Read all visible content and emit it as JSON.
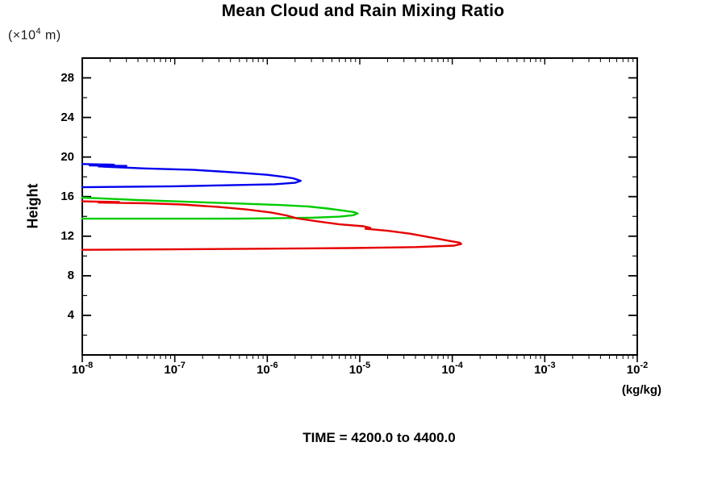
{
  "title": "Mean Cloud and Rain Mixing Ratio",
  "labels": {
    "y_unit_prefix": "(×10",
    "y_unit_exp": "4",
    "y_unit_suffix": " m)",
    "y_axis": "Height",
    "x_unit": "(kg/kg)",
    "caption": "TIME = 4200.0 to 4400.0"
  },
  "colors": {
    "blue_series": "#0000ee",
    "green_series": "#00cc00",
    "red_series": "#e60000",
    "axis": "#000000",
    "background": "#ffffff"
  },
  "chart_data": {
    "type": "line",
    "title": "Mean Cloud and Rain Mixing Ratio",
    "xlabel": "(kg/kg)",
    "ylabel": "Height",
    "y_unit": "(×10^4 m)",
    "caption": "TIME = 4200.0 to 4400.0",
    "x_scale": "log",
    "xlim": [
      1e-08,
      0.01
    ],
    "ylim": [
      0,
      30
    ],
    "x_tick_base": "10",
    "x_major_tick_exponents": [
      -8,
      -7,
      -6,
      -5,
      -4,
      -3,
      -2
    ],
    "y_major_ticks": [
      4,
      8,
      12,
      16,
      20,
      24,
      28
    ],
    "y_minor_step": 2,
    "grid": false,
    "legend": "none",
    "series": [
      {
        "name": "blue",
        "color": "#0000ee",
        "points": [
          [
            1e-08,
            19.3
          ],
          [
            2.2e-08,
            19.22
          ],
          [
            1.2e-08,
            19.15
          ],
          [
            3e-08,
            19.1
          ],
          [
            1.5e-08,
            19.05
          ],
          [
            4.7e-08,
            18.85
          ],
          [
            1.6e-07,
            18.7
          ],
          [
            3e-07,
            18.55
          ],
          [
            5.2e-07,
            18.4
          ],
          [
            1e-06,
            18.2
          ],
          [
            1.5e-06,
            18.0
          ],
          [
            1.9e-06,
            17.85
          ],
          [
            2.3e-06,
            17.6
          ],
          [
            2e-06,
            17.4
          ],
          [
            1.2e-06,
            17.25
          ],
          [
            4e-07,
            17.15
          ],
          [
            1e-07,
            17.05
          ],
          [
            1e-08,
            16.95
          ]
        ]
      },
      {
        "name": "green",
        "color": "#00cc00",
        "points": [
          [
            1e-08,
            15.9
          ],
          [
            2e-08,
            15.78
          ],
          [
            4e-08,
            15.65
          ],
          [
            1e-07,
            15.52
          ],
          [
            2e-07,
            15.42
          ],
          [
            5e-07,
            15.3
          ],
          [
            1.4e-06,
            15.15
          ],
          [
            2.8e-06,
            15.0
          ],
          [
            4.5e-06,
            14.8
          ],
          [
            6.5e-06,
            14.6
          ],
          [
            8.8e-06,
            14.42
          ],
          [
            9.5e-06,
            14.3
          ],
          [
            8.5e-06,
            14.12
          ],
          [
            6e-06,
            13.97
          ],
          [
            3e-06,
            13.87
          ],
          [
            1e-06,
            13.8
          ],
          [
            5e-07,
            13.78
          ],
          [
            1e-08,
            13.77
          ]
        ]
      },
      {
        "name": "red",
        "color": "#e60000",
        "points": [
          [
            1e-08,
            15.52
          ],
          [
            2.5e-08,
            15.45
          ],
          [
            1.5e-08,
            15.4
          ],
          [
            5e-08,
            15.33
          ],
          [
            1.2e-07,
            15.2
          ],
          [
            3e-07,
            14.95
          ],
          [
            6e-07,
            14.7
          ],
          [
            1.1e-06,
            14.4
          ],
          [
            1.6e-06,
            14.1
          ],
          [
            2.1e-06,
            13.8
          ],
          [
            3.5e-06,
            13.5
          ],
          [
            6e-06,
            13.2
          ],
          [
            1.1e-05,
            13.0
          ],
          [
            1.3e-05,
            12.85
          ],
          [
            1.15e-05,
            12.75
          ],
          [
            2e-05,
            12.55
          ],
          [
            3.5e-05,
            12.25
          ],
          [
            6e-05,
            11.85
          ],
          [
            9e-05,
            11.55
          ],
          [
            0.00012,
            11.35
          ],
          [
            0.000125,
            11.22
          ],
          [
            0.000105,
            11.05
          ],
          [
            4e-05,
            10.9
          ],
          [
            8e-06,
            10.8
          ],
          [
            3e-07,
            10.7
          ],
          [
            1e-08,
            10.62
          ]
        ]
      }
    ]
  }
}
